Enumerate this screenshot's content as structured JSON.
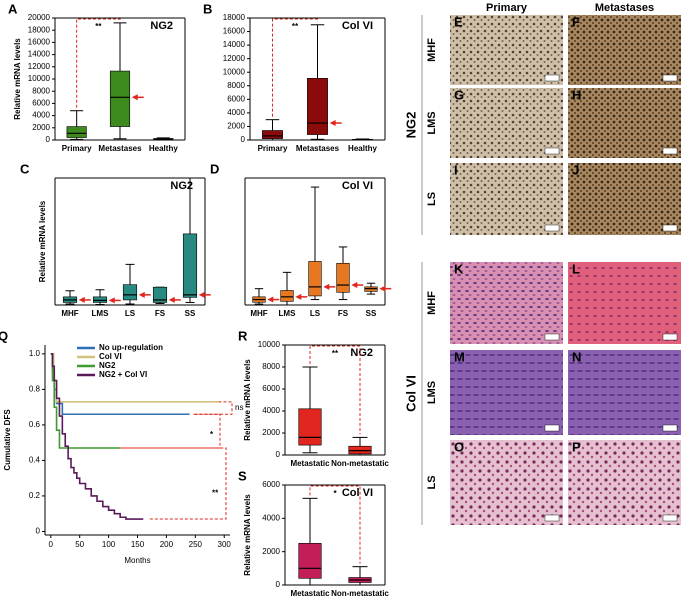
{
  "chart_data": [
    {
      "type": "box",
      "label": "A",
      "title": "NG2",
      "y_label": "Relative mRNA levels",
      "annotation": "**",
      "median_arrows": true,
      "color": "#3d8b1f",
      "categories": [
        "Primary",
        "Metastases",
        "Healthy"
      ],
      "whisker_low": [
        100,
        200,
        0
      ],
      "q1": [
        400,
        2200,
        50
      ],
      "median": [
        1100,
        7000,
        150
      ],
      "q3": [
        2200,
        11300,
        250
      ],
      "whisker_high": [
        4800,
        19200,
        350
      ],
      "ylim": [
        0,
        20000
      ],
      "yticks": [
        0,
        2000,
        4000,
        6000,
        8000,
        10000,
        12000,
        14000,
        16000,
        18000,
        20000
      ]
    },
    {
      "type": "box",
      "label": "B",
      "title": "Col VI",
      "annotation": "**",
      "median_arrows": true,
      "color": "#8b0a0a",
      "categories": [
        "Primary",
        "Metastases",
        "Healthy"
      ],
      "whisker_low": [
        0,
        100,
        0
      ],
      "q1": [
        200,
        800,
        20
      ],
      "median": [
        600,
        2500,
        60
      ],
      "q3": [
        1400,
        9100,
        100
      ],
      "whisker_high": [
        3000,
        17000,
        150
      ],
      "ylim": [
        0,
        18000
      ],
      "yticks": [
        0,
        2000,
        4000,
        6000,
        8000,
        10000,
        12000,
        14000,
        16000,
        18000
      ]
    },
    {
      "type": "box",
      "label": "C",
      "title": "NG2",
      "y_label": "Relative mRNA levels",
      "median_arrows": true,
      "color": "#27897f",
      "categories": [
        "MHF",
        "LMS",
        "LS",
        "FS",
        "SS"
      ],
      "whisker_low": [
        200,
        100,
        200,
        300,
        500
      ],
      "q1": [
        500,
        500,
        1000,
        500,
        1500
      ],
      "median": [
        1000,
        900,
        2000,
        1000,
        2000
      ],
      "q3": [
        1600,
        1600,
        4000,
        3500,
        14000
      ],
      "whisker_high": [
        2800,
        3000,
        8000,
        3500,
        25000
      ],
      "ylim": [
        0,
        25000
      ]
    },
    {
      "type": "box",
      "label": "D",
      "title": "Col VI",
      "median_arrows": true,
      "color": "#e87722",
      "categories": [
        "MHF",
        "LMS",
        "LS",
        "FS",
        "SS"
      ],
      "whisker_low": [
        50,
        0,
        300,
        300,
        600
      ],
      "q1": [
        150,
        200,
        500,
        700,
        750
      ],
      "median": [
        300,
        450,
        1000,
        1100,
        900
      ],
      "q3": [
        450,
        800,
        2400,
        2300,
        1000
      ],
      "whisker_high": [
        900,
        1800,
        6500,
        3200,
        1200
      ],
      "ylim": [
        0,
        7000
      ]
    },
    {
      "type": "line",
      "label": "Q",
      "y_label": "Cumulative DFS",
      "x_label": "Months",
      "legend": "top",
      "annotations": [
        "ns",
        "*",
        "**"
      ],
      "series": [
        {
          "name": "No up-regulation",
          "color": "#2f6fb5",
          "x": [
            0,
            3,
            6,
            10,
            20,
            240
          ],
          "values": [
            1,
            0.9,
            0.8,
            0.72,
            0.66,
            0.66
          ]
        },
        {
          "name": "Col VI",
          "color": "#d4c27a",
          "x": [
            0,
            5,
            10,
            290
          ],
          "values": [
            1,
            0.85,
            0.73,
            0.73
          ]
        },
        {
          "name": "NG2",
          "color": "#3d9b2f",
          "x": [
            0,
            3,
            6,
            10,
            15,
            120
          ],
          "values": [
            1,
            0.85,
            0.7,
            0.57,
            0.47,
            0.47
          ]
        },
        {
          "name": "NG2 + Col VI",
          "color": "#5a1a5a",
          "x": [
            0,
            3,
            6,
            10,
            15,
            20,
            25,
            30,
            35,
            40,
            45,
            50,
            60,
            70,
            80,
            90,
            100,
            110,
            120,
            130,
            160
          ],
          "values": [
            1,
            0.93,
            0.85,
            0.75,
            0.65,
            0.55,
            0.48,
            0.41,
            0.36,
            0.33,
            0.3,
            0.27,
            0.24,
            0.2,
            0.17,
            0.14,
            0.12,
            0.1,
            0.08,
            0.07,
            0.07
          ]
        }
      ],
      "xlim": [
        -10,
        310
      ],
      "xticks": [
        0,
        50,
        100,
        150,
        200,
        250,
        300
      ],
      "ylim": [
        -0.02,
        1.05
      ],
      "yticks": [
        0,
        {
          "value": 0.2,
          "label": "0.2"
        },
        {
          "value": 0.4,
          "label": "0.4"
        },
        {
          "value": 0.6,
          "label": "0.6"
        },
        {
          "value": 0.8,
          "label": "0.8"
        },
        {
          "value": 1,
          "label": "1.0"
        }
      ]
    },
    {
      "type": "box",
      "label": "R",
      "title": "NG2",
      "y_label": "Relative mRNA levels",
      "annotation": "**",
      "color": "#e0261e",
      "categories": [
        "Metastatic",
        "Non-metastatic"
      ],
      "whisker_low": [
        200,
        0
      ],
      "q1": [
        900,
        100
      ],
      "median": [
        1600,
        400
      ],
      "q3": [
        4200,
        800
      ],
      "whisker_high": [
        8000,
        1600
      ],
      "ylim": [
        0,
        10000
      ],
      "yticks": [
        0,
        2000,
        4000,
        6000,
        8000,
        10000
      ]
    },
    {
      "type": "box",
      "label": "S",
      "title": "Col VI",
      "y_label": "Relative mRNA levels",
      "annotation": "*",
      "color": "#c41e5a",
      "categories": [
        "Metastatic",
        "Non-metastatic"
      ],
      "whisker_low": [
        0,
        0
      ],
      "q1": [
        400,
        150
      ],
      "median": [
        1000,
        300
      ],
      "q3": [
        2500,
        450
      ],
      "whisker_high": [
        5200,
        1100
      ],
      "ylim": [
        0,
        6000
      ],
      "yticks": [
        0,
        2000,
        4000,
        6000
      ]
    }
  ],
  "micrographs": {
    "columns": [
      "Primary",
      "Metastases"
    ],
    "groups": [
      {
        "name": "NG2",
        "rows": [
          {
            "name": "MHF",
            "panels": [
              "E",
              "F"
            ]
          },
          {
            "name": "LMS",
            "panels": [
              "G",
              "H"
            ]
          },
          {
            "name": "LS",
            "panels": [
              "I",
              "J"
            ]
          }
        ]
      },
      {
        "name": "Col VI",
        "rows": [
          {
            "name": "MHF",
            "panels": [
              "K",
              "L"
            ]
          },
          {
            "name": "LMS",
            "panels": [
              "M",
              "N"
            ]
          },
          {
            "name": "LS",
            "panels": [
              "O",
              "P"
            ]
          }
        ]
      }
    ]
  }
}
